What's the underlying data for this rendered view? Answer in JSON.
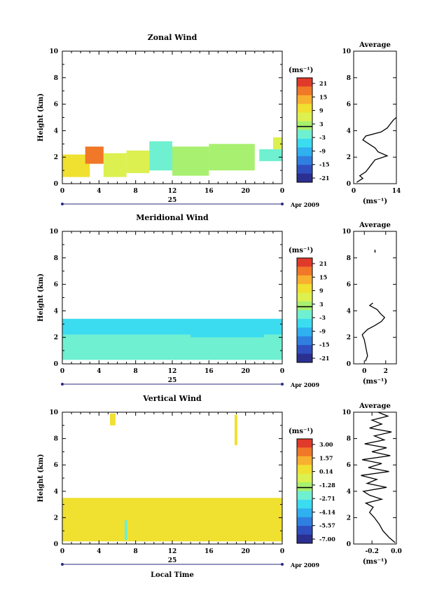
{
  "date_label": "Apr 2009",
  "day_label": "25",
  "xlabel": "Local Time",
  "units_label": "(ms⁻¹)",
  "chart_data": [
    {
      "type": "heatmap",
      "title": "Zonal Wind",
      "ylabel": "Height (km)",
      "xlabel": "",
      "x_ticks": [
        "0",
        "4",
        "8",
        "12",
        "16",
        "20",
        "0"
      ],
      "xlim": [
        0,
        24
      ],
      "ylim": [
        0,
        10
      ],
      "y_ticks": [
        "0",
        "2",
        "4",
        "6",
        "8",
        "10"
      ],
      "colorbar_label": "(ms⁻¹)",
      "colorbar_ticks": [
        "21",
        "15",
        "9",
        "3",
        "-3",
        "-9",
        "-15",
        "-21"
      ],
      "colorbar_range": [
        -24,
        24
      ],
      "regions": [
        {
          "x": [
            0.0,
            3.0
          ],
          "y": [
            0.5,
            2.2
          ],
          "value": 10
        },
        {
          "x": [
            2.5,
            4.5
          ],
          "y": [
            1.5,
            2.8
          ],
          "value": 16
        },
        {
          "x": [
            4.5,
            7.0
          ],
          "y": [
            0.5,
            2.3
          ],
          "value": 6
        },
        {
          "x": [
            7.0,
            9.5
          ],
          "y": [
            0.8,
            2.5
          ],
          "value": 5
        },
        {
          "x": [
            9.5,
            12.0
          ],
          "y": [
            1.0,
            3.2
          ],
          "value": -2
        },
        {
          "x": [
            12.0,
            16.0
          ],
          "y": [
            0.6,
            2.8
          ],
          "value": 3
        },
        {
          "x": [
            16.0,
            21.0
          ],
          "y": [
            1.0,
            3.0
          ],
          "value": 1
        },
        {
          "x": [
            21.5,
            24.0
          ],
          "y": [
            1.7,
            2.6
          ],
          "value": -1
        },
        {
          "x": [
            23.0,
            24.0
          ],
          "y": [
            2.6,
            3.5
          ],
          "value": 7
        }
      ],
      "average": {
        "xlabel": "(ms⁻¹)",
        "xlim": [
          0,
          14
        ],
        "x_ticks": [
          "0",
          "14"
        ],
        "height": [
          0.1,
          0.4,
          0.6,
          0.9,
          1.2,
          1.5,
          1.8,
          2.1,
          2.4,
          2.7,
          3.0,
          3.3,
          3.6,
          3.9,
          4.2,
          4.5,
          4.8,
          5.0
        ],
        "value": [
          1,
          3,
          2,
          4,
          5,
          6,
          7,
          11,
          8,
          7,
          5,
          3,
          4,
          9,
          11,
          12,
          13,
          14
        ]
      }
    },
    {
      "type": "heatmap",
      "title": "Meridional Wind",
      "ylabel": "Height (km)",
      "xlabel": "",
      "x_ticks": [
        "0",
        "4",
        "8",
        "12",
        "16",
        "20",
        "0"
      ],
      "xlim": [
        0,
        24
      ],
      "ylim": [
        0,
        10
      ],
      "y_ticks": [
        "0",
        "2",
        "4",
        "6",
        "8",
        "10"
      ],
      "colorbar_label": "(ms⁻¹)",
      "colorbar_ticks": [
        "21",
        "15",
        "9",
        "3",
        "-3",
        "-9",
        "-15",
        "-21"
      ],
      "colorbar_range": [
        -24,
        24
      ],
      "regions": [
        {
          "x": [
            0.0,
            24.0
          ],
          "y": [
            2.2,
            3.4
          ],
          "value": -6
        },
        {
          "x": [
            0.0,
            24.0
          ],
          "y": [
            0.3,
            2.2
          ],
          "value": -2
        },
        {
          "x": [
            3.0,
            10.0
          ],
          "y": [
            2.4,
            3.2
          ],
          "value": -7
        },
        {
          "x": [
            14.0,
            22.0
          ],
          "y": [
            2.0,
            3.1
          ],
          "value": -6
        }
      ],
      "average": {
        "xlabel": "(ms⁻¹)",
        "xlim": [
          -1,
          3
        ],
        "x_ticks": [
          "0",
          "2"
        ],
        "height": [
          0.2,
          0.6,
          1.0,
          1.4,
          1.8,
          2.2,
          2.6,
          2.9,
          3.2,
          3.5,
          3.8,
          4.1,
          4.4,
          4.6
        ],
        "value": [
          0.1,
          0.3,
          0.2,
          0.1,
          0.0,
          -0.2,
          0.3,
          1.0,
          1.6,
          1.9,
          1.5,
          1.2,
          0.5,
          0.8
        ],
        "isolated_points": [
          {
            "height": 8.5,
            "value": 1.0
          }
        ]
      }
    },
    {
      "type": "heatmap",
      "title": "Vertical Wind",
      "ylabel": "Height (km)",
      "xlabel": "Local Time",
      "x_ticks": [
        "0",
        "4",
        "8",
        "12",
        "16",
        "20",
        "0"
      ],
      "xlim": [
        0,
        24
      ],
      "ylim": [
        0,
        10
      ],
      "y_ticks": [
        "0",
        "2",
        "4",
        "6",
        "8",
        "10"
      ],
      "colorbar_label": "(ms⁻¹)",
      "colorbar_ticks": [
        "3.00",
        "1.57",
        "0.14",
        "-1.28",
        "-2.71",
        "-4.14",
        "-5.57",
        "-7.00"
      ],
      "colorbar_range": [
        -7.7,
        3.7
      ],
      "regions": [
        {
          "x": [
            0.0,
            24.0
          ],
          "y": [
            0.2,
            3.5
          ],
          "value": 0.5
        },
        {
          "x": [
            6.8,
            7.1
          ],
          "y": [
            0.3,
            1.8
          ],
          "value": -2.5
        },
        {
          "x": [
            5.2,
            5.8
          ],
          "y": [
            9.0,
            9.9
          ],
          "value": 0.5
        },
        {
          "x": [
            18.8,
            19.1
          ],
          "y": [
            7.5,
            9.8
          ],
          "value": 0.5
        }
      ],
      "average": {
        "xlabel": "(ms⁻¹)",
        "xlim": [
          -0.35,
          0.0
        ],
        "x_ticks": [
          "-0.2",
          "0.0"
        ],
        "height": [
          0.1,
          0.5,
          1.0,
          1.5,
          2.0,
          2.4,
          2.8,
          3.1,
          3.4,
          3.7,
          4.0,
          4.3,
          4.6,
          4.9,
          5.2,
          5.5,
          5.8,
          6.1,
          6.4,
          6.7,
          7.0,
          7.3,
          7.6,
          7.9,
          8.2,
          8.5,
          8.8,
          9.1,
          9.4,
          9.7,
          10.0
        ],
        "value": [
          -0.01,
          -0.06,
          -0.11,
          -0.14,
          -0.18,
          -0.22,
          -0.19,
          -0.25,
          -0.12,
          -0.22,
          -0.27,
          -0.08,
          -0.24,
          -0.16,
          -0.29,
          -0.06,
          -0.23,
          -0.12,
          -0.28,
          -0.05,
          -0.2,
          -0.08,
          -0.26,
          -0.1,
          -0.18,
          -0.04,
          -0.22,
          -0.12,
          -0.2,
          -0.07,
          -0.15
        ]
      }
    }
  ]
}
